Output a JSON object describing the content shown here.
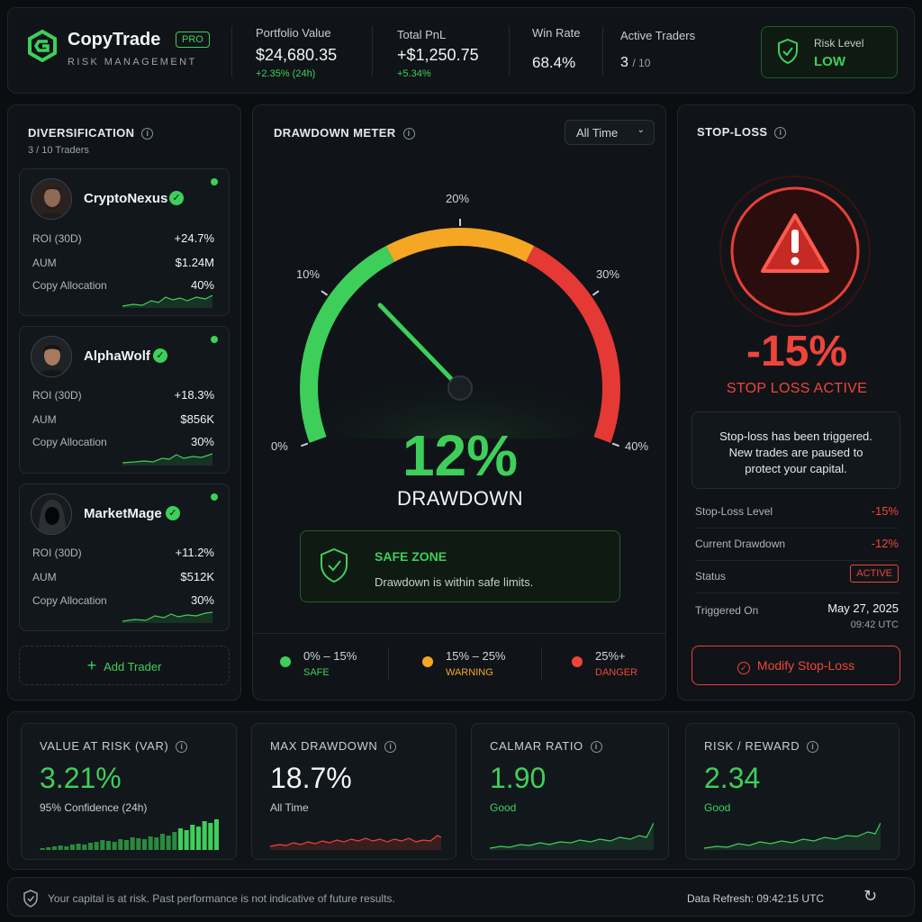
{
  "header": {
    "logo_text": "CopyTrade",
    "badge": "PRO",
    "subtitle": "RISK MANAGEMENT",
    "portfolio_label": "Portfolio Value",
    "portfolio_value": "$24,680.35",
    "portfolio_change": "+2.35% (24h)",
    "pnl_label": "Total PnL",
    "pnl_value": "+$1,250.75",
    "pnl_change": "+5.34%",
    "winrate_label": "Win Rate",
    "winrate_value": "68.4%",
    "traders_label": "Active Traders",
    "traders_value": "3",
    "traders_total": "/ 10",
    "risk_label": "Risk Level",
    "risk_value": "LOW"
  },
  "diversification": {
    "title": "DIVERSIFICATION",
    "count": "3 / 10 Traders",
    "roi_label": "ROI (30D)",
    "aum_label": "AUM",
    "alloc_label": "Copy Allocation",
    "traders": [
      {
        "name": "CryptoNexus",
        "roi": "+24.7%",
        "aum": "$1.24M",
        "allocation": "40%"
      },
      {
        "name": "AlphaWolf",
        "roi": "+18.3%",
        "aum": "$856K",
        "allocation": "30%"
      },
      {
        "name": "MarketMage",
        "roi": "+11.2%",
        "aum": "$512K",
        "allocation": "30%"
      }
    ],
    "add_button": "Add Trader"
  },
  "drawdown": {
    "title": "DRAWDOWN METER",
    "period": "All Time",
    "ticks": [
      "0%",
      "10%",
      "20%",
      "30%",
      "40%"
    ],
    "gauge_value": 12,
    "gauge_max": 40,
    "value": "12%",
    "label": "DRAWDOWN",
    "zone_title": "SAFE ZONE",
    "zone_desc": "Drawdown is within safe limits.",
    "legend": [
      {
        "range": "0% – 15%",
        "tag": "SAFE",
        "color": "#3ecf5a"
      },
      {
        "range": "15% – 25%",
        "tag": "WARNING",
        "color": "#f5a623"
      },
      {
        "range": "25%+",
        "tag": "DANGER",
        "color": "#f0443a"
      }
    ]
  },
  "stoploss": {
    "title": "STOP-LOSS",
    "value": "-15%",
    "status_text": "STOP LOSS ACTIVE",
    "message_1": "Stop-loss has been triggered.",
    "message_2": "New trades are paused to",
    "message_3": "protect your capital.",
    "level_label": "Stop-Loss Level",
    "level_value": "-15%",
    "current_label": "Current Drawdown",
    "current_value": "-12%",
    "status_label": "Status",
    "status_value": "ACTIVE",
    "triggered_label": "Triggered On",
    "triggered_date": "May 27, 2025",
    "triggered_time": "09:42 UTC",
    "modify_button": "Modify Stop-Loss"
  },
  "metrics": [
    {
      "title": "VALUE AT RISK (VAR)",
      "value": "3.21%",
      "sub": "95% Confidence (24h)"
    },
    {
      "title": "MAX DRAWDOWN",
      "value": "18.7%",
      "sub": "All Time"
    },
    {
      "title": "CALMAR RATIO",
      "value": "1.90",
      "sub": "Good"
    },
    {
      "title": "RISK / REWARD",
      "value": "2.34",
      "sub": "Good"
    }
  ],
  "footer": {
    "disclaimer": "Your capital is at risk. Past performance is not indicative of future results.",
    "refresh_label": "Data Refresh:",
    "refresh_time": "09:42:15 UTC"
  },
  "colors": {
    "accent_green": "#3ecf5a",
    "warning": "#f5a623",
    "danger": "#f0443a",
    "background": "#0b0e11"
  }
}
